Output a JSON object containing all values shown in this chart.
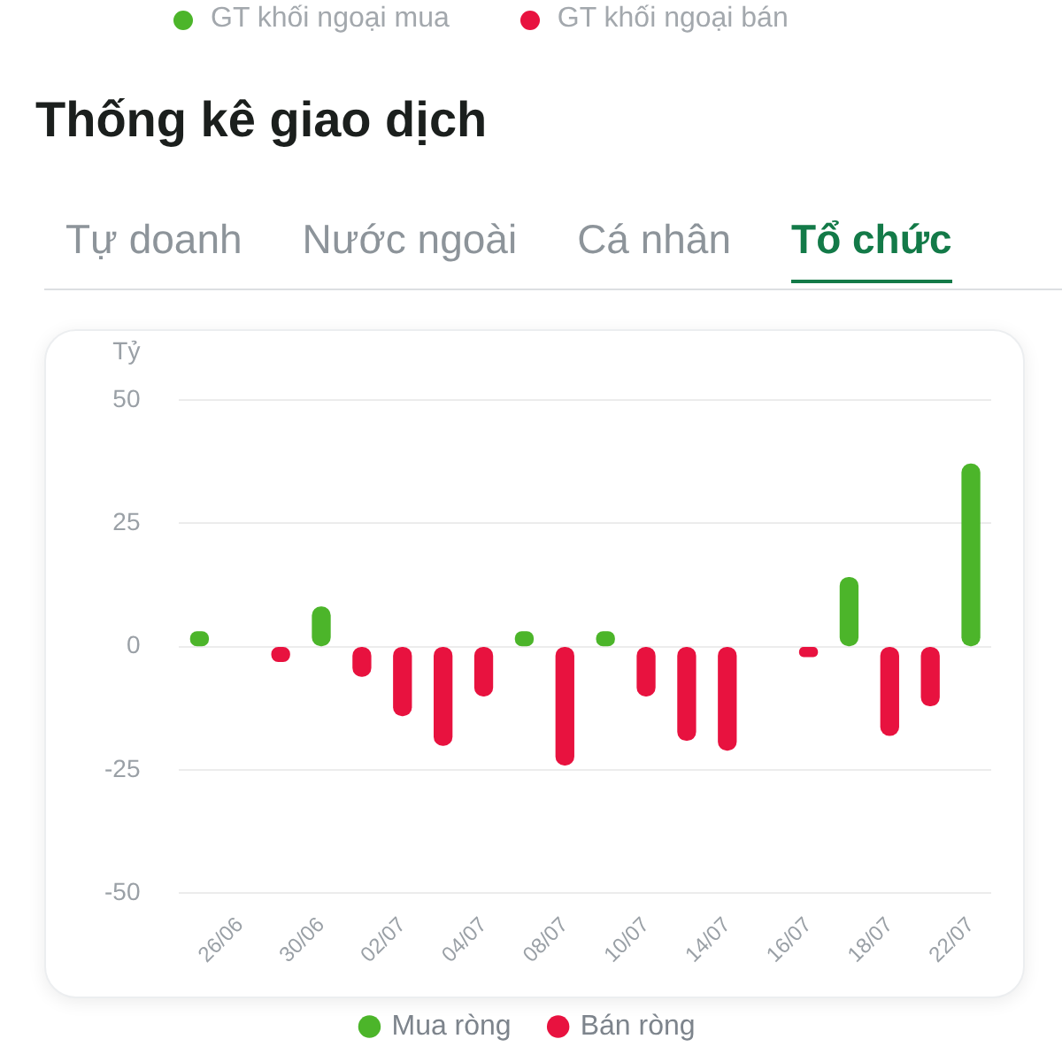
{
  "chart_data": {
    "type": "bar",
    "title": "Thống kê giao dịch",
    "ylabel": "Tỷ",
    "annotations": [
      "GT khối ngoại mua",
      "GT khối ngoại bán",
      "Tự doanh",
      "Nước ngoài",
      "Cá nhân",
      "Tổ chức"
    ],
    "categories": [
      null,
      "26/06",
      null,
      "30/06",
      null,
      "02/07",
      null,
      "04/07",
      null,
      "08/07",
      null,
      "10/07",
      null,
      "14/07",
      null,
      "16/07",
      null,
      "18/07",
      null,
      "22/07"
    ],
    "series": [
      {
        "name": "Mua ròng",
        "color": "#4cb52a",
        "values": [
          3,
          null,
          null,
          8,
          null,
          null,
          null,
          null,
          3,
          null,
          3,
          null,
          null,
          null,
          null,
          null,
          14,
          null,
          null,
          37
        ]
      },
      {
        "name": "Bán ròng",
        "color": "#e8123f",
        "values": [
          null,
          null,
          -3,
          null,
          -6,
          -14,
          -20,
          -10,
          null,
          -24,
          null,
          -10,
          -19,
          -21,
          null,
          -2,
          null,
          -18,
          -12,
          null
        ]
      }
    ],
    "ylim": [
      -50,
      50
    ],
    "yticks": [
      -50,
      -25,
      0,
      25,
      50
    ],
    "grid": "y",
    "legend": "bottom"
  }
}
